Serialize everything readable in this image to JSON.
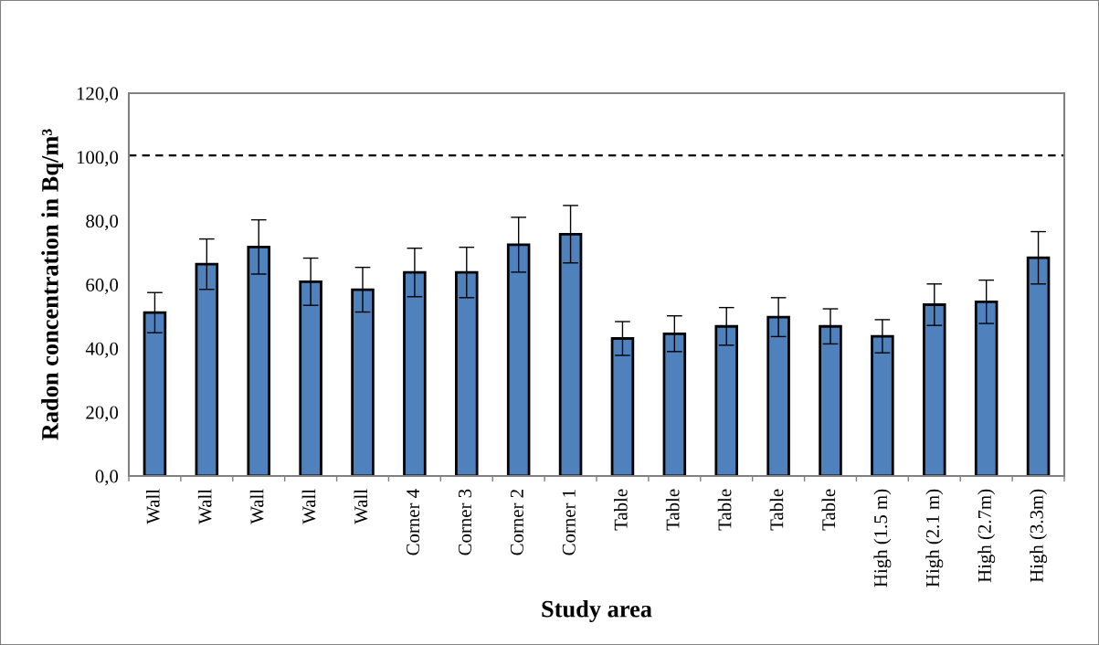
{
  "chart_data": {
    "type": "bar",
    "xlabel": "Study area",
    "ylabel": "Radon concentration in Bq/m³",
    "categories": [
      "Wall",
      "Wall",
      "Wall",
      "Wall",
      "Wall",
      "Corner 4",
      "Corner 3",
      "Corner 2",
      "Corner 1",
      "Table",
      "Table",
      "Table",
      "Table",
      "Table",
      "High (1.5 m)",
      "High (2.1 m)",
      "High (2.7m)",
      "High (3.3m)"
    ],
    "values": [
      51.2,
      66.4,
      71.8,
      60.9,
      58.4,
      63.8,
      63.8,
      72.5,
      75.8,
      43.1,
      44.6,
      46.9,
      49.8,
      46.9,
      43.8,
      53.7,
      54.6,
      68.4
    ],
    "errors": [
      6.3,
      7.9,
      8.5,
      7.4,
      7.0,
      7.6,
      7.9,
      8.6,
      9.0,
      5.3,
      5.6,
      5.9,
      6.1,
      5.5,
      5.2,
      6.5,
      6.8,
      8.2
    ],
    "color": "#4f81bd",
    "ylim": [
      0,
      120
    ],
    "yticks": [
      {
        "value": 0,
        "label": "0,0"
      },
      {
        "value": 20,
        "label": "20,0"
      },
      {
        "value": 40,
        "label": "40,0"
      },
      {
        "value": 60,
        "label": "60,0"
      },
      {
        "value": 80,
        "label": "80,0"
      },
      {
        "value": 100,
        "label": "100,0"
      },
      {
        "value": 120,
        "label": "120,0"
      }
    ],
    "ref_lines": [
      {
        "axis": "y",
        "value": 100.5,
        "label": null,
        "color": "#000000",
        "line_style": "dashed"
      }
    ],
    "grid": false,
    "legend": false
  }
}
